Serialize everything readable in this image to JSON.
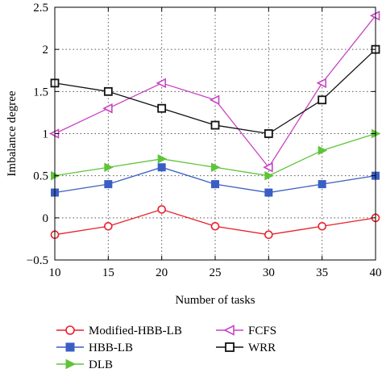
{
  "chart_data": {
    "type": "line",
    "title": "",
    "xlabel": "Number of tasks",
    "ylabel": "Imbalance degree",
    "x": [
      10,
      15,
      20,
      25,
      30,
      35,
      40
    ],
    "xlim": [
      10,
      40
    ],
    "ylim": [
      -0.5,
      2.5
    ],
    "x_ticks": [
      "10",
      "15",
      "20",
      "25",
      "30",
      "35",
      "40"
    ],
    "y_ticks": [
      "2.5",
      "2",
      "1.5",
      "1",
      "0.5",
      "0",
      "−0.5"
    ],
    "grid": true,
    "legend_position": "bottom",
    "series": [
      {
        "name": "Modified-HBB-LB",
        "color": "#e8202a",
        "marker": "circle-open",
        "values": [
          -0.2,
          -0.1,
          0.1,
          -0.1,
          -0.2,
          -0.1,
          0.0
        ]
      },
      {
        "name": "HBB-LB",
        "color": "#3a5fc4",
        "marker": "square-filled",
        "values": [
          0.3,
          0.4,
          0.6,
          0.4,
          0.3,
          0.4,
          0.5
        ]
      },
      {
        "name": "DLB",
        "color": "#5ec43a",
        "marker": "triangle-right",
        "values": [
          0.5,
          0.6,
          0.7,
          0.6,
          0.5,
          0.8,
          1.0
        ]
      },
      {
        "name": "FCFS",
        "color": "#c844c4",
        "marker": "triangle-left",
        "values": [
          1.0,
          1.3,
          1.6,
          1.4,
          0.6,
          1.6,
          2.4
        ]
      },
      {
        "name": "WRR",
        "color": "#111111",
        "marker": "square-open",
        "values": [
          1.6,
          1.5,
          1.3,
          1.1,
          1.0,
          1.4,
          2.0
        ]
      }
    ]
  }
}
